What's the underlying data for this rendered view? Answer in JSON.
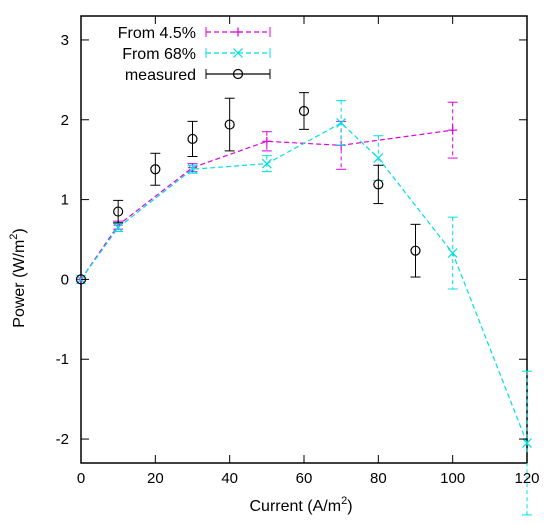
{
  "chart_data": {
    "type": "scatter",
    "xlabel": "Current (A/m",
    "xlabel_sup": "2",
    "xlabel_tail": ")",
    "ylabel": "Power (W/m",
    "ylabel_sup": "2",
    "ylabel_tail": ")",
    "xlim": [
      0,
      120
    ],
    "ylim": [
      -2.3,
      3.3
    ],
    "xticks": [
      0,
      20,
      40,
      60,
      80,
      100,
      120
    ],
    "xtick_labels": [
      "0",
      "20",
      "40",
      "60",
      "80",
      "100",
      "120"
    ],
    "yticks": [
      -2,
      -1,
      0,
      1,
      2,
      3
    ],
    "ytick_labels": [
      "-2",
      "-1",
      "0",
      "1",
      "2",
      "3"
    ],
    "grid": false,
    "legend_position": "top-left",
    "series": [
      {
        "name": "From 4.5%",
        "color": "#e000e0",
        "style": "dashed-line-plus-markers-errorbars",
        "points": [
          {
            "x": 0,
            "y": 0,
            "err": 0
          },
          {
            "x": 10,
            "y": 0.68,
            "err": 0.05
          },
          {
            "x": 30,
            "y": 1.4,
            "err": 0.05
          },
          {
            "x": 50,
            "y": 1.73,
            "err": 0.12
          },
          {
            "x": 70,
            "y": 1.68,
            "err": 0.3
          },
          {
            "x": 100,
            "y": 1.87,
            "err": 0.35
          }
        ]
      },
      {
        "name": "From 68%",
        "color": "#00e0e0",
        "style": "dashed-line-x-markers-errorbars",
        "points": [
          {
            "x": 0,
            "y": 0,
            "err": 0
          },
          {
            "x": 10,
            "y": 0.65,
            "err": 0.05
          },
          {
            "x": 30,
            "y": 1.38,
            "err": 0.05
          },
          {
            "x": 50,
            "y": 1.45,
            "err": 0.1
          },
          {
            "x": 70,
            "y": 1.96,
            "err": 0.28
          },
          {
            "x": 80,
            "y": 1.52,
            "err": 0.28
          },
          {
            "x": 100,
            "y": 0.33,
            "err": 0.45
          },
          {
            "x": 120,
            "y": -2.05,
            "err": 0.9
          }
        ]
      },
      {
        "name": "measured",
        "color": "#000000",
        "style": "circle-markers-errorbars",
        "points": [
          {
            "x": 0,
            "y": 0,
            "err": 0
          },
          {
            "x": 10,
            "y": 0.85,
            "err": 0.14
          },
          {
            "x": 20,
            "y": 1.38,
            "err": 0.2
          },
          {
            "x": 30,
            "y": 1.76,
            "err": 0.22
          },
          {
            "x": 40,
            "y": 1.94,
            "err": 0.33
          },
          {
            "x": 60,
            "y": 2.11,
            "err": 0.23
          },
          {
            "x": 80,
            "y": 1.19,
            "err": 0.24
          },
          {
            "x": 90,
            "y": 0.36,
            "err": 0.33
          }
        ]
      }
    ]
  }
}
